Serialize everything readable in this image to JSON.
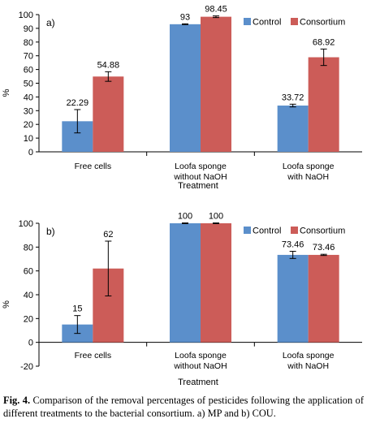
{
  "figure": {
    "caption_label": "Fig. 4.",
    "caption_text": "Comparison of the removal percentages of pesticides following the application of different treatments to the bacterial consortium. a) MP and b) COU."
  },
  "colors": {
    "control": "#5b8fcb",
    "consortium": "#cc5c58",
    "axis": "#000000"
  },
  "chart_data": [
    {
      "type": "bar",
      "panel_label": "a)",
      "categories": [
        "Free cells",
        "Loofa sponge\nwithout NaOH",
        "Loofa sponge\nwith NaOH"
      ],
      "series": [
        {
          "name": "Control",
          "values": [
            22.29,
            93,
            33.72
          ],
          "labels": [
            "22.29",
            "93",
            "33.72"
          ],
          "errors": [
            8.5,
            0.3,
            1.0
          ]
        },
        {
          "name": "Consortium",
          "values": [
            54.88,
            98.45,
            68.92
          ],
          "labels": [
            "54.88",
            "98.45",
            "68.92"
          ],
          "errors": [
            3.5,
            0.6,
            6.0
          ]
        }
      ],
      "xlabel": "Treatment",
      "ylabel": "%",
      "ylim": [
        0,
        100
      ],
      "yticks": [
        0,
        10,
        20,
        30,
        40,
        50,
        60,
        70,
        80,
        90,
        100
      ],
      "legend": "top-right",
      "grid": false
    },
    {
      "type": "bar",
      "panel_label": "b)",
      "categories": [
        "Free cells",
        "Loofa sponge\nwithout NaOH",
        "Loofa sponge\nwith NaOH"
      ],
      "series": [
        {
          "name": "Control",
          "values": [
            15,
            100,
            73.46
          ],
          "labels": [
            "15",
            "100",
            "73.46"
          ],
          "errors": [
            7.5,
            0.3,
            3.0
          ]
        },
        {
          "name": "Consortium",
          "values": [
            62,
            100,
            73.46
          ],
          "labels": [
            "62",
            "100",
            "73.46"
          ],
          "errors": [
            23,
            0.3,
            0.5
          ]
        }
      ],
      "xlabel": "Treatment",
      "ylabel": "%",
      "ylim": [
        -20,
        100
      ],
      "yticks": [
        -20,
        0,
        20,
        40,
        60,
        80,
        100
      ],
      "legend": "top-right",
      "grid": false
    }
  ]
}
